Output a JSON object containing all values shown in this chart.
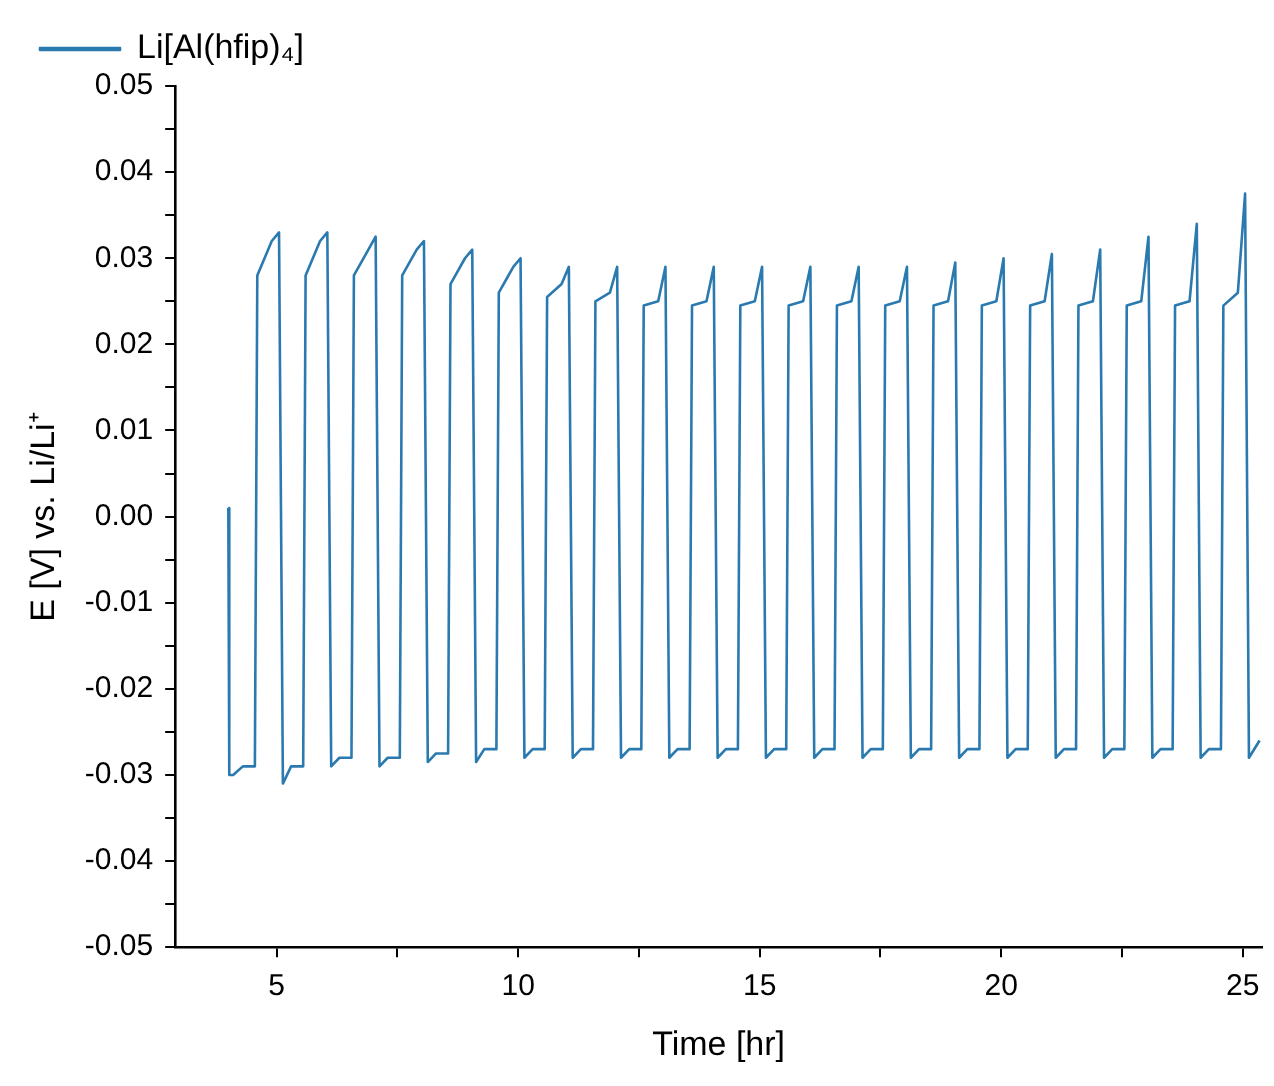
{
  "chart_data": {
    "type": "line",
    "xlabel": "Time [hr]",
    "ylabel": "E [V] vs. Li/Li⁺",
    "legend": "top left",
    "grid": false,
    "marker": "none",
    "line_style": "solid",
    "xlim": [
      2.9,
      25.4
    ],
    "xticks": [
      5,
      {
        "value": 7.5,
        "label": null
      },
      10,
      {
        "value": 12.5,
        "label": null
      },
      15,
      {
        "value": 17.5,
        "label": null
      },
      20,
      {
        "value": 22.5,
        "label": null
      },
      25
    ],
    "ylim": [
      -0.05,
      0.05
    ],
    "yticks": [
      -0.05,
      {
        "value": -0.045,
        "label": null
      },
      -0.04,
      {
        "value": -0.035,
        "label": null
      },
      -0.03,
      {
        "value": -0.025,
        "label": null
      },
      -0.02,
      {
        "value": -0.015,
        "label": null
      },
      -0.01,
      {
        "value": -0.005,
        "label": null
      },
      {
        "value": 0,
        "label": "0.00"
      },
      {
        "value": 0.005,
        "label": null
      },
      0.01,
      {
        "value": 0.015,
        "label": null
      },
      0.02,
      {
        "value": 0.025,
        "label": null
      },
      0.03,
      {
        "value": 0.035,
        "label": null
      },
      0.04,
      {
        "value": 0.045,
        "label": null
      },
      0.05
    ],
    "series": [
      {
        "name": "Li[Al(hfip)₄]",
        "color": "#2a7ab0",
        "x": [
          4.0,
          4.02,
          4.1,
          4.3,
          4.55,
          4.6,
          4.9,
          5.05,
          5.13,
          5.3,
          5.55,
          5.6,
          5.9,
          6.05,
          6.13,
          6.3,
          6.55,
          6.6,
          6.9,
          7.05,
          7.13,
          7.3,
          7.55,
          7.6,
          7.9,
          8.05,
          8.13,
          8.3,
          8.55,
          8.6,
          8.9,
          9.05,
          9.13,
          9.3,
          9.55,
          9.6,
          9.9,
          10.05,
          10.13,
          10.3,
          10.55,
          10.6,
          10.9,
          11.05,
          11.13,
          11.3,
          11.55,
          11.6,
          11.9,
          12.05,
          12.13,
          12.3,
          12.55,
          12.6,
          12.9,
          13.05,
          13.13,
          13.3,
          13.55,
          13.6,
          13.9,
          14.05,
          14.13,
          14.3,
          14.55,
          14.6,
          14.9,
          15.05,
          15.13,
          15.3,
          15.55,
          15.6,
          15.9,
          16.05,
          16.13,
          16.3,
          16.55,
          16.6,
          16.9,
          17.05,
          17.13,
          17.3,
          17.55,
          17.6,
          17.9,
          18.05,
          18.13,
          18.3,
          18.55,
          18.6,
          18.9,
          19.05,
          19.13,
          19.3,
          19.55,
          19.6,
          19.9,
          20.05,
          20.13,
          20.3,
          20.55,
          20.6,
          20.9,
          21.05,
          21.13,
          21.3,
          21.55,
          21.6,
          21.9,
          22.05,
          22.13,
          22.3,
          22.55,
          22.6,
          22.9,
          23.05,
          23.13,
          23.3,
          23.55,
          23.6,
          23.9,
          24.05,
          24.13,
          24.3,
          24.55,
          24.6,
          24.9,
          25.05,
          25.13,
          25.35
        ],
        "values": [
          0.001,
          -0.03,
          -0.03,
          -0.029,
          -0.029,
          0.028,
          0.032,
          0.033,
          -0.031,
          -0.029,
          -0.029,
          0.028,
          0.032,
          0.033,
          -0.029,
          -0.028,
          -0.028,
          0.028,
          0.031,
          0.0325,
          -0.029,
          -0.028,
          -0.028,
          0.028,
          0.031,
          0.032,
          -0.0285,
          -0.0275,
          -0.0275,
          0.027,
          0.03,
          0.031,
          -0.0285,
          -0.027,
          -0.027,
          0.026,
          0.029,
          0.03,
          -0.028,
          -0.027,
          -0.027,
          0.0255,
          0.027,
          0.029,
          -0.028,
          -0.027,
          -0.027,
          0.025,
          0.026,
          0.029,
          -0.028,
          -0.027,
          -0.027,
          0.0245,
          0.025,
          0.029,
          -0.028,
          -0.027,
          -0.027,
          0.0245,
          0.025,
          0.029,
          -0.028,
          -0.027,
          -0.027,
          0.0245,
          0.025,
          0.029,
          -0.028,
          -0.027,
          -0.027,
          0.0245,
          0.025,
          0.029,
          -0.028,
          -0.027,
          -0.027,
          0.0245,
          0.025,
          0.029,
          -0.028,
          -0.027,
          -0.027,
          0.0245,
          0.025,
          0.029,
          -0.028,
          -0.027,
          -0.027,
          0.0245,
          0.025,
          0.0295,
          -0.028,
          -0.027,
          -0.027,
          0.0245,
          0.025,
          0.03,
          -0.028,
          -0.027,
          -0.027,
          0.0245,
          0.025,
          0.0305,
          -0.028,
          -0.027,
          -0.027,
          0.0245,
          0.025,
          0.031,
          -0.028,
          -0.027,
          -0.027,
          0.0245,
          0.025,
          0.0325,
          -0.028,
          -0.027,
          -0.027,
          0.0245,
          0.025,
          0.034,
          -0.028,
          -0.027,
          -0.027,
          0.0245,
          0.026,
          0.0375,
          -0.028,
          -0.026
        ]
      }
    ]
  }
}
